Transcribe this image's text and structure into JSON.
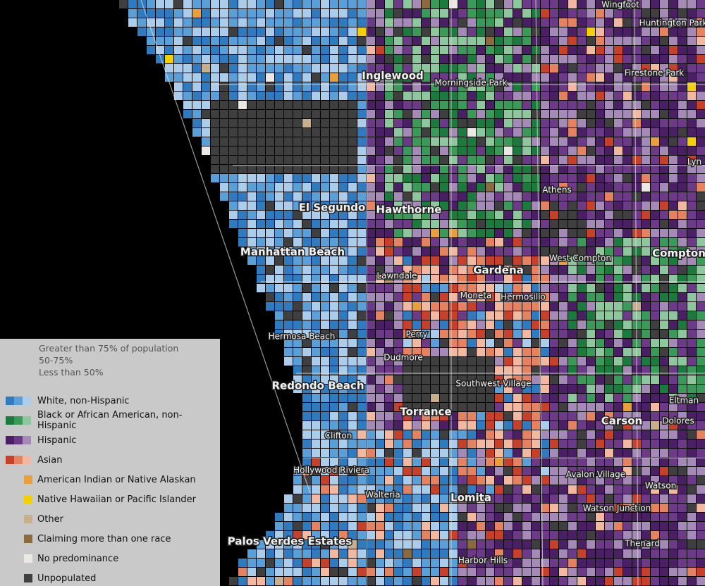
{
  "places": [
    {
      "label": "Wingfoot"
    },
    {
      "label": "Huntington Park"
    },
    {
      "label": "Inglewood"
    },
    {
      "label": "Morningside Park"
    },
    {
      "label": "Firestone Park"
    },
    {
      "label": "Lyn"
    },
    {
      "label": "Athens"
    },
    {
      "label": "El Segundo"
    },
    {
      "label": "Hawthorne"
    },
    {
      "label": "Manhattan Beach"
    },
    {
      "label": "Lawndale"
    },
    {
      "label": "Gardena"
    },
    {
      "label": "West Compton"
    },
    {
      "label": "Compton"
    },
    {
      "label": "Moneta"
    },
    {
      "label": "Hermosillo"
    },
    {
      "label": "Hermosa Beach"
    },
    {
      "label": "Perry"
    },
    {
      "label": "Dudmore"
    },
    {
      "label": "Southwest Village"
    },
    {
      "label": "Redondo Beach"
    },
    {
      "label": "Torrance"
    },
    {
      "label": "Carson"
    },
    {
      "label": "Eltman"
    },
    {
      "label": "Dolores"
    },
    {
      "label": "Clifton"
    },
    {
      "label": "Hollywood Riviera"
    },
    {
      "label": "Avalon Village"
    },
    {
      "label": "Walteria"
    },
    {
      "label": "Lomita"
    },
    {
      "label": "Watson"
    },
    {
      "label": "Watson Junction"
    },
    {
      "label": "Palos Verdes Estates"
    },
    {
      "label": "Thenard"
    },
    {
      "label": "Harbor Hills"
    }
  ],
  "legend": {
    "levels": [
      "Greater than 75% of population",
      "50-75%",
      "Less than 50%"
    ],
    "items": [
      {
        "label": "White, non-Hispanic",
        "colors": [
          "#2e7bbf",
          "#5aa0d8",
          "#a9cdea"
        ]
      },
      {
        "label": "Black or African American, non-Hispanic",
        "colors": [
          "#1b7a3e",
          "#3a9a5a",
          "#8cc79d"
        ]
      },
      {
        "label": "Hispanic",
        "colors": [
          "#4b1f63",
          "#6c3a86",
          "#a58ab8"
        ]
      },
      {
        "label": "Asian",
        "colors": [
          "#c7402a",
          "#e5825f",
          "#f2b8a0"
        ]
      },
      {
        "label": "American Indian or Native Alaskan",
        "colors": [
          "#e9a03b"
        ]
      },
      {
        "label": "Native Hawaiian or Pacific Islander",
        "colors": [
          "#f5d000"
        ]
      },
      {
        "label": "Other",
        "colors": [
          "#c9b08c"
        ]
      },
      {
        "label": "Claiming more than one race",
        "colors": [
          "#8b6a3e"
        ]
      },
      {
        "label": "No predominance",
        "colors": [
          "#ece8e4"
        ]
      },
      {
        "label": "Unpopulated",
        "colors": [
          "#3f3f3f"
        ]
      }
    ]
  }
}
